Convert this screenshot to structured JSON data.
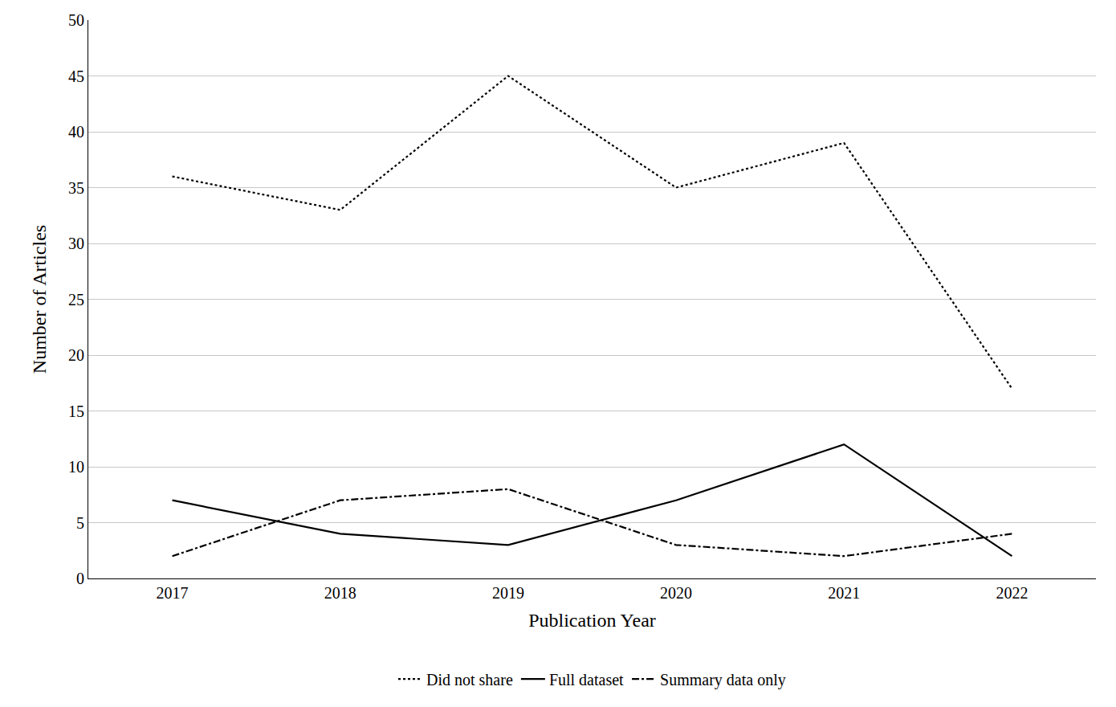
{
  "chart_data": {
    "type": "line",
    "x_label": "Publication Year",
    "y_label": "Number of Articles",
    "categories": [
      "2017",
      "2018",
      "2019",
      "2020",
      "2021",
      "2022"
    ],
    "series": [
      {
        "name": "Did not share",
        "color": "#000000",
        "line_style": "dotted",
        "values": [
          36,
          33,
          45,
          35,
          39,
          17
        ]
      },
      {
        "name": "Full dataset",
        "color": "#000000",
        "line_style": "solid",
        "values": [
          7,
          4,
          3,
          7,
          12,
          2
        ]
      },
      {
        "name": "Summary data only",
        "color": "#000000",
        "line_style": "dashdot",
        "values": [
          2,
          7,
          8,
          3,
          2,
          4
        ]
      }
    ],
    "ylim": [
      0,
      50
    ],
    "yticks": [
      0,
      5,
      10,
      15,
      20,
      25,
      30,
      35,
      40,
      45,
      50
    ],
    "grid": true,
    "legend": "bottom"
  }
}
